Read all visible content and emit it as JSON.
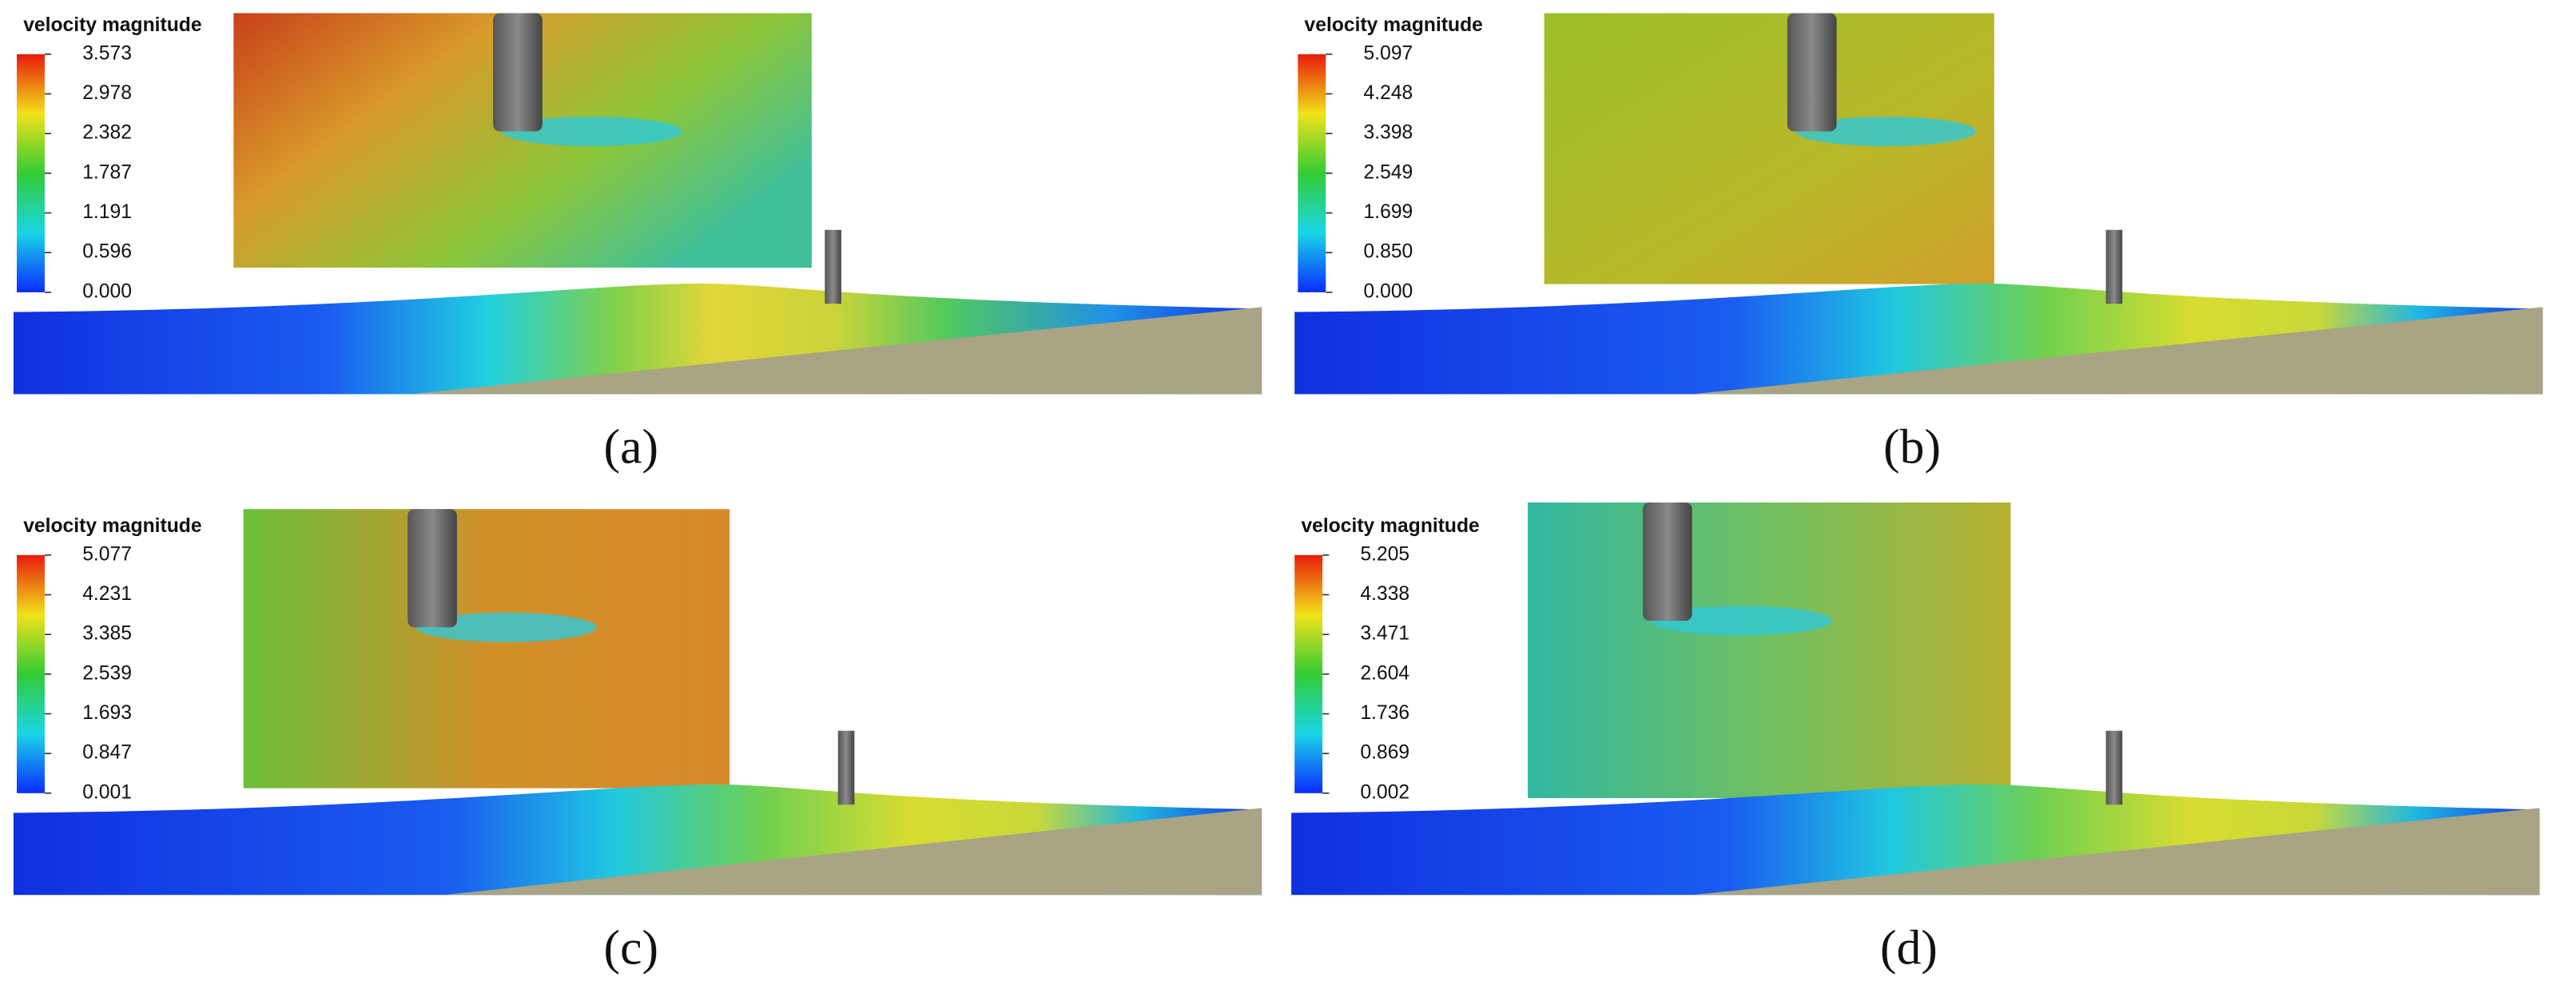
{
  "panels": [
    {
      "legend_title": "velocity magnitude",
      "range": [
        0,
        3.573
      ],
      "ticks": [
        3.573,
        2.978,
        2.382,
        1.787,
        1.191,
        0.596,
        {
          "value": 0,
          "label": "0.000"
        }
      ],
      "caption": "(a)"
    },
    {
      "legend_title": "velocity magnitude",
      "range": [
        0,
        5.097
      ],
      "ticks": [
        5.097,
        4.248,
        3.398,
        2.549,
        1.699,
        {
          "value": 0.85,
          "label": "0.850"
        },
        {
          "value": 0,
          "label": "0.000"
        }
      ],
      "caption": "(b)"
    },
    {
      "legend_title": "velocity magnitude",
      "range": [
        0.001,
        5.077
      ],
      "ticks": [
        5.077,
        4.231,
        3.385,
        2.539,
        1.693,
        0.847,
        0.001
      ],
      "caption": "(c)"
    },
    {
      "legend_title": "velocity magnitude",
      "range": [
        0.002,
        5.205
      ],
      "ticks": [
        5.205,
        4.338,
        3.471,
        2.604,
        1.736,
        0.869,
        0.002
      ],
      "caption": "(d)"
    }
  ]
}
